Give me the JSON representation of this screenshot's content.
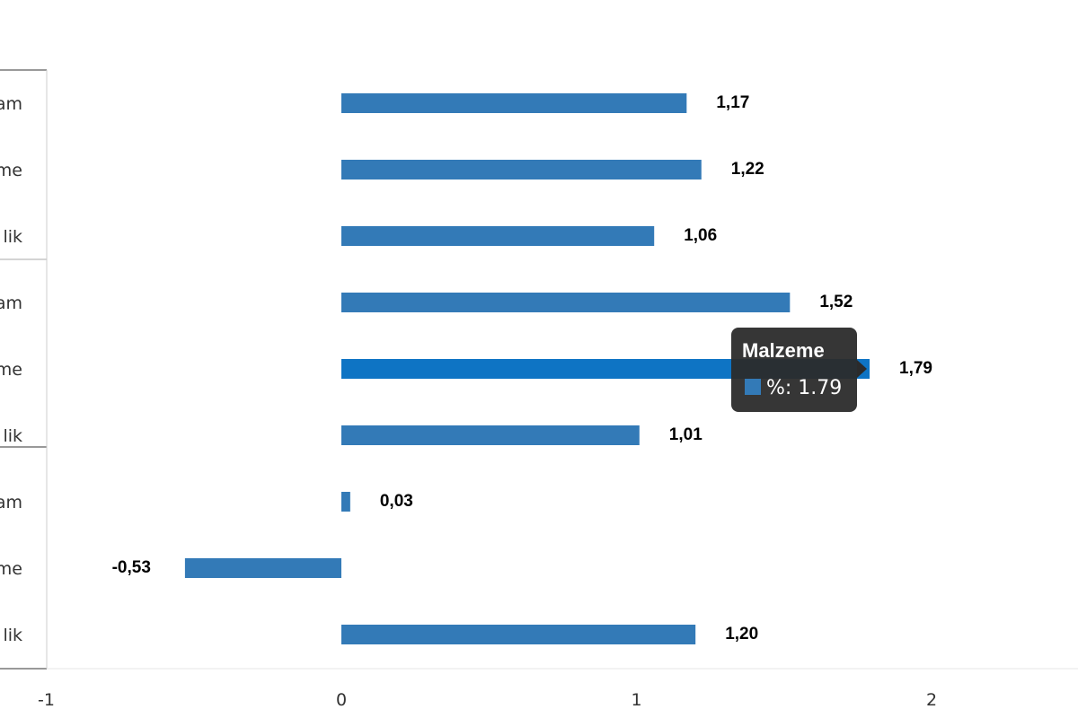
{
  "chart_data": {
    "type": "bar",
    "orientation": "horizontal",
    "categories": [
      "am",
      "me",
      "lik",
      "am",
      "me",
      "lik",
      "am",
      "me",
      "lik"
    ],
    "values": [
      1.17,
      1.22,
      1.06,
      1.52,
      1.79,
      1.01,
      0.03,
      -0.53,
      1.2
    ],
    "data_labels": [
      "1,17",
      "1,22",
      "1,06",
      "1,52",
      "1,79",
      "1,01",
      "0,03",
      "-0,53",
      "1,20"
    ],
    "x_ticks": [
      -1,
      0,
      1,
      2
    ],
    "x_tick_labels": [
      "-1",
      "0",
      "1",
      "2"
    ],
    "xlim": [
      -1,
      2.5
    ],
    "grid": false,
    "legend": "none",
    "colors": {
      "bar": "#337ab7",
      "bar_highlight": "#0e74c4",
      "tooltip_bg": "#2b2b2b"
    },
    "highlighted_index": 4,
    "tooltip": {
      "title": "Malzeme",
      "text": "%: 1.79"
    }
  }
}
